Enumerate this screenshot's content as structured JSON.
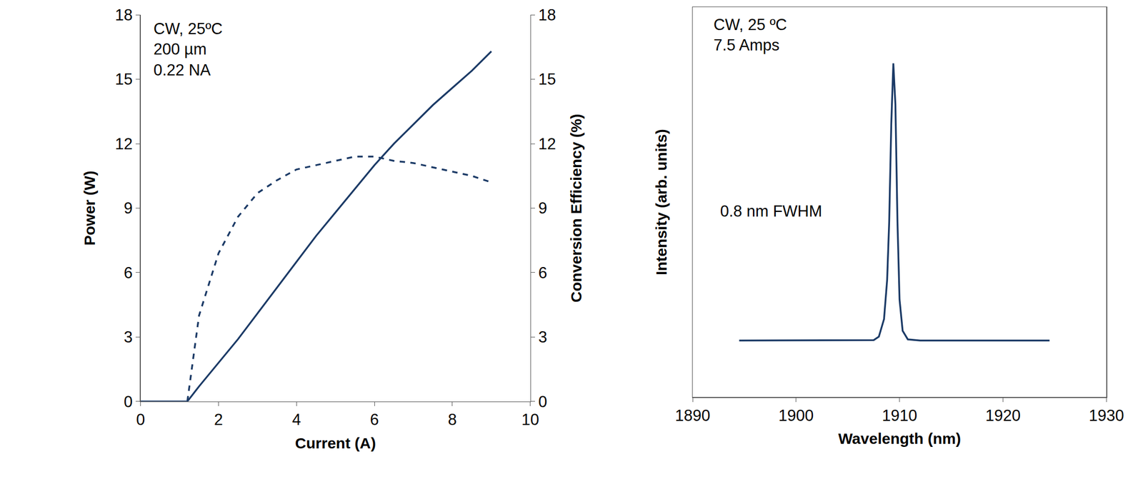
{
  "chart_data": [
    {
      "type": "line",
      "xlabel": "Current (A)",
      "ylabel": "Power (W)",
      "y2label": "Conversion Efficiency (%)",
      "annotations": [
        "CW, 25ºC\n200 µm\n0.22 NA"
      ],
      "xlim": [
        0,
        10
      ],
      "xticks": [
        0,
        2,
        4,
        6,
        8,
        10
      ],
      "ylim": [
        0,
        18
      ],
      "yticks": [
        0,
        3,
        6,
        9,
        12,
        15,
        18
      ],
      "y2lim": [
        0,
        18
      ],
      "y2ticks": [
        0,
        3,
        6,
        9,
        12,
        15,
        18
      ],
      "grid": false,
      "series": [
        {
          "color": "#1b3a66",
          "line_style": "solid",
          "x": [
            0,
            0.5,
            1.0,
            1.2,
            1.5,
            2.0,
            2.5,
            3.0,
            3.5,
            4.0,
            4.5,
            5.0,
            5.5,
            6.0,
            6.5,
            7.0,
            7.5,
            8.0,
            8.5,
            9.0
          ],
          "values": [
            0,
            0,
            0,
            0,
            0.7,
            1.8,
            2.9,
            4.1,
            5.3,
            6.5,
            7.7,
            8.8,
            9.9,
            11.0,
            12.0,
            12.9,
            13.8,
            14.6,
            15.4,
            16.3
          ]
        },
        {
          "color": "#1b3a66",
          "line_style": "dashed",
          "axis": "y2",
          "x": [
            1.2,
            1.5,
            2.0,
            2.5,
            3.0,
            3.5,
            4.0,
            4.5,
            5.0,
            5.5,
            6.0,
            6.5,
            7.0,
            7.5,
            8.0,
            8.5,
            9.0
          ],
          "values": [
            0,
            4.0,
            6.9,
            8.6,
            9.7,
            10.3,
            10.8,
            11.0,
            11.2,
            11.4,
            11.4,
            11.2,
            11.1,
            10.9,
            10.7,
            10.5,
            10.2
          ]
        }
      ]
    },
    {
      "type": "line",
      "xlabel": "Wavelength (nm)",
      "ylabel": "Intensity (arb. units)",
      "annotations": [
        "CW, 25 ºC\n7.5 Amps",
        "0.8 nm FWHM"
      ],
      "xlim": [
        1890,
        1930
      ],
      "xticks": [
        1890,
        1900,
        1910,
        1920,
        1930
      ],
      "ylim": [
        0,
        100
      ],
      "yticks": [],
      "tick_labels": "x",
      "grid": false,
      "series": [
        {
          "color": "#1b3a66",
          "line_style": "solid",
          "x": [
            1894.5,
            1900,
            1905,
            1907.5,
            1908,
            1908.5,
            1908.8,
            1909,
            1909.2,
            1909.4,
            1909.6,
            1909.8,
            1910,
            1910.3,
            1910.8,
            1912,
            1918,
            1924.5
          ],
          "values": [
            14.5,
            14.5,
            14.5,
            14.6,
            15.5,
            20,
            30,
            45,
            70,
            85.6,
            75,
            45,
            25,
            17,
            14.8,
            14.5,
            14.5,
            14.5
          ]
        }
      ]
    }
  ]
}
